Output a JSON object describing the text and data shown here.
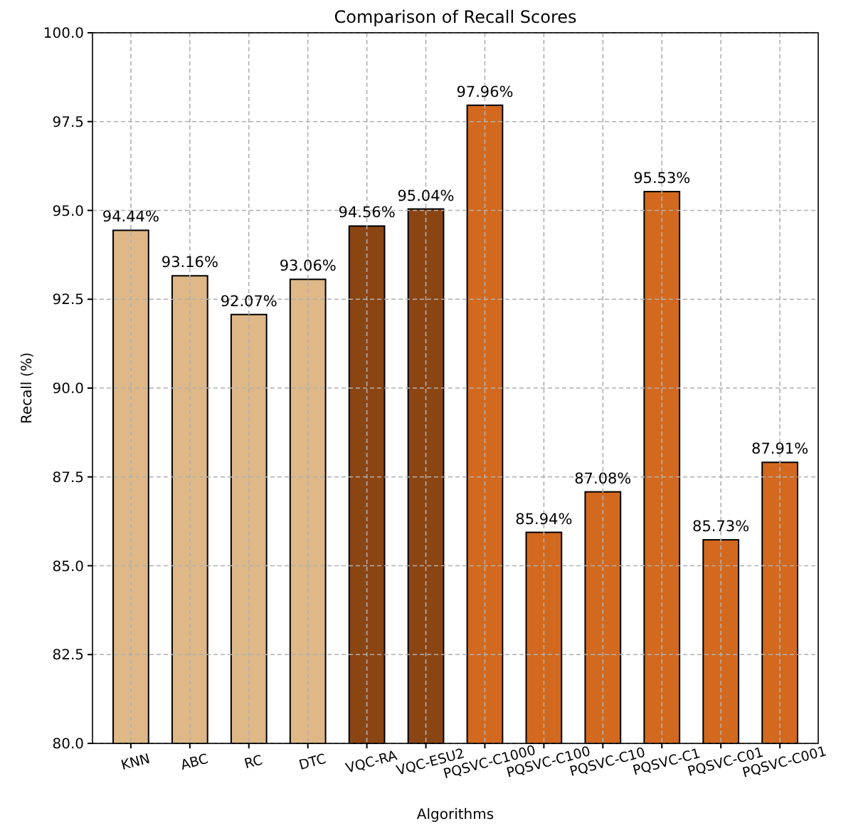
{
  "chart_data": {
    "type": "bar",
    "title": "Comparison of Recall Scores",
    "xlabel": "Algorithms",
    "ylabel": "Recall (%)",
    "categories": [
      "KNN",
      "ABC",
      "RC",
      "DTC",
      "VQC-RA",
      "VQC-ESU2",
      "PQSVC-C1000",
      "PQSVC-C100",
      "PQSVC-C10",
      "PQSVC-C1",
      "PQSVC-C01",
      "PQSVC-C001"
    ],
    "values": [
      94.44,
      93.16,
      92.07,
      93.06,
      94.56,
      95.04,
      97.96,
      85.94,
      87.08,
      95.53,
      85.73,
      87.91
    ],
    "value_labels": [
      "94.44%",
      "93.16%",
      "92.07%",
      "93.06%",
      "94.56%",
      "95.04%",
      "97.96%",
      "85.94%",
      "87.08%",
      "95.53%",
      "85.73%",
      "87.91%"
    ],
    "colors": [
      "#deb887",
      "#deb887",
      "#deb887",
      "#deb887",
      "#8b4513",
      "#8b4513",
      "#d2691e",
      "#d2691e",
      "#d2691e",
      "#d2691e",
      "#d2691e",
      "#d2691e"
    ],
    "ylim": [
      80,
      100
    ],
    "yticks": [
      {
        "value": 80,
        "label": "80.0"
      },
      {
        "value": 82.5,
        "label": "82.5"
      },
      {
        "value": 85,
        "label": "85.0"
      },
      {
        "value": 87.5,
        "label": "87.5"
      },
      {
        "value": 90,
        "label": "90.0"
      },
      {
        "value": 92.5,
        "label": "92.5"
      },
      {
        "value": 95,
        "label": "95.0"
      },
      {
        "value": 97.5,
        "label": "97.5"
      },
      {
        "value": 100,
        "label": "100.0"
      }
    ],
    "grid": true
  }
}
